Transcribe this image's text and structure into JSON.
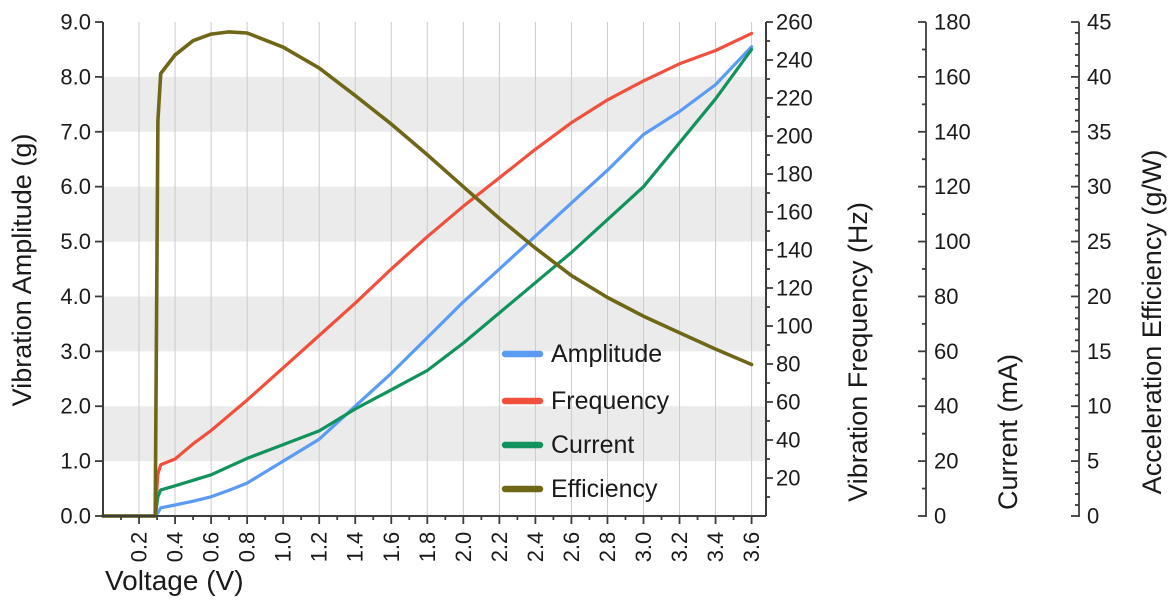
{
  "chart_data": {
    "type": "line",
    "title": "",
    "xlabel": "Voltage (V)",
    "grid": {
      "vertical": true,
      "horizontal_bands": [
        [
          1,
          2
        ],
        [
          3,
          4
        ],
        [
          5,
          6
        ],
        [
          7,
          8
        ]
      ]
    },
    "legend": {
      "position": "inside-bottom-right",
      "entries": [
        "Amplitude",
        "Frequency",
        "Current",
        "Efficiency"
      ]
    },
    "axes": {
      "x": {
        "label": "Voltage (V)",
        "min": 0,
        "max": 3.68,
        "tick_start": 0.2,
        "tick_end": 3.6,
        "tick_step": 0.2,
        "minor_step": 0.1,
        "decimals": 1
      },
      "amplitude": {
        "label": "Vibration Amplitude (g)",
        "min": 0,
        "max": 9,
        "tick_start": 0,
        "tick_step": 1,
        "decimals": 1
      },
      "frequency": {
        "label": "Vibration Frequency (Hz)",
        "min": 0,
        "max": 260,
        "tick_start": 0,
        "label_start": 20,
        "tick_step": 20,
        "minor_step": 10,
        "decimals": 0
      },
      "current": {
        "label": "Current (mA)",
        "min": 0,
        "max": 180,
        "tick_start": 0,
        "tick_step": 20,
        "minor_step": 10,
        "decimals": 0
      },
      "efficiency": {
        "label": "Acceleration Efficiency (g/W)",
        "min": 0,
        "max": 45,
        "tick_start": 0,
        "tick_step": 5,
        "minor_step": 1,
        "decimals": 0
      }
    },
    "x": [
      0.0,
      0.1,
      0.2,
      0.29,
      0.305,
      0.32,
      0.4,
      0.5,
      0.6,
      0.7,
      0.8,
      1.0,
      1.2,
      1.4,
      1.6,
      1.8,
      2.0,
      2.2,
      2.4,
      2.6,
      2.8,
      3.0,
      3.2,
      3.4,
      3.6
    ],
    "series": [
      {
        "name": "Amplitude",
        "axis": "amplitude",
        "color": "#5B9BF3",
        "width": 3.2,
        "values": [
          0,
          0,
          0,
          0,
          0.06,
          0.15,
          0.2,
          0.27,
          0.35,
          0.47,
          0.6,
          1.0,
          1.4,
          2.0,
          2.6,
          3.25,
          3.9,
          4.5,
          5.1,
          5.7,
          6.3,
          6.95,
          7.37,
          7.86,
          8.55
        ]
      },
      {
        "name": "Frequency",
        "axis": "frequency",
        "color": "#F0503C",
        "width": 3.2,
        "values": [
          0,
          0,
          0,
          0,
          22,
          27,
          30,
          38,
          45,
          53,
          61,
          78,
          95,
          112,
          130,
          147,
          163,
          178,
          193,
          207,
          219,
          229,
          238,
          245,
          254
        ]
      },
      {
        "name": "Current",
        "axis": "current",
        "color": "#12925C",
        "width": 3.2,
        "values": [
          0,
          0,
          0,
          0,
          7,
          9.5,
          11,
          13,
          15,
          18,
          21,
          26,
          31,
          39,
          46,
          53,
          63,
          74,
          85,
          96,
          108,
          120,
          136,
          152,
          170
        ]
      },
      {
        "name": "Efficiency",
        "axis": "efficiency",
        "color": "#6F6717",
        "width": 3.6,
        "values": [
          0,
          0,
          0,
          0,
          36,
          40.3,
          42.0,
          43.3,
          43.9,
          44.1,
          44.0,
          42.7,
          40.8,
          38.3,
          35.7,
          32.9,
          30.0,
          27.1,
          24.4,
          21.9,
          19.9,
          18.2,
          16.7,
          15.2,
          13.8
        ]
      }
    ],
    "colors": {
      "grid": "#CBCBCB",
      "band": "#EBEBEB",
      "axis_line": "#3C3C3C",
      "text": "#1A1A1A",
      "background": "#FFFFFF"
    }
  }
}
